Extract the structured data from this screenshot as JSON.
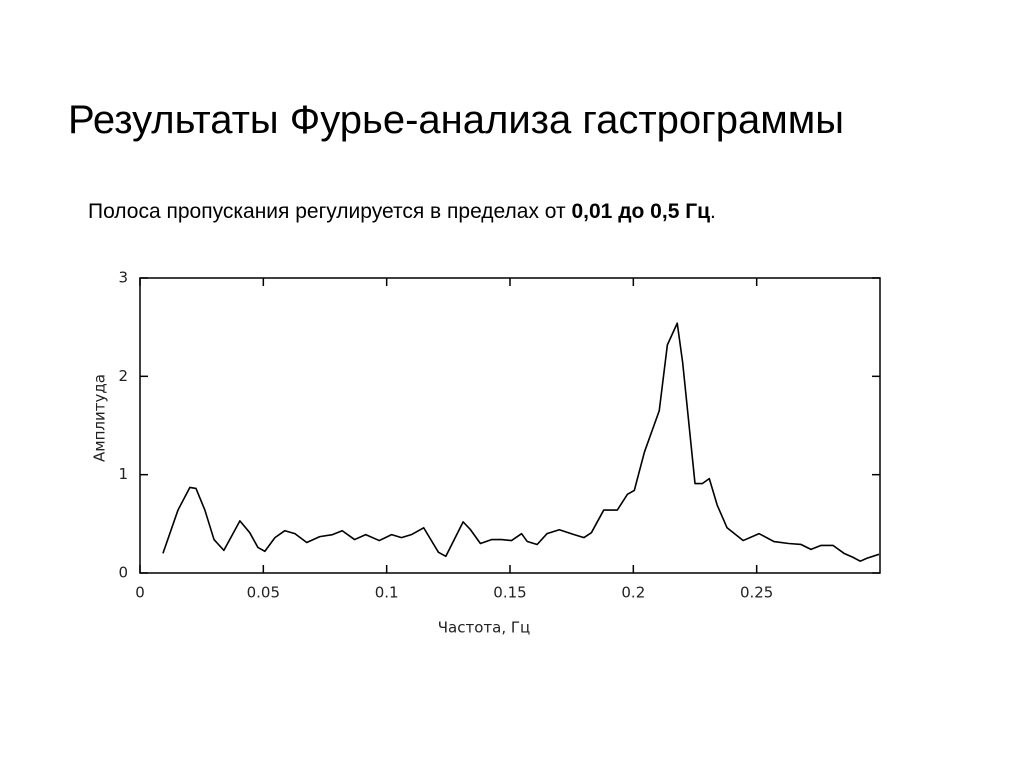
{
  "chart_data": {
    "type": "line",
    "title": "Результаты Фурье-анализа гастрограммы",
    "subtitle": "Полоса пропускания регулируется в пределах от ",
    "subtitle_bold": "0,01 до 0,5 Гц",
    "subtitle_end": ".",
    "xlabel": "Частота, Гц",
    "ylabel": "Амплитуда",
    "xlim": [
      0,
      0.3
    ],
    "xticks": [
      0,
      0.05,
      0.1,
      0.15,
      0.2,
      0.25
    ],
    "ylim": [
      0,
      3
    ],
    "yticks": [
      0,
      1,
      2,
      3
    ],
    "color": "#000000",
    "x": [
      0.0093,
      0.0154,
      0.0202,
      0.0227,
      0.0263,
      0.03,
      0.034,
      0.0405,
      0.0445,
      0.0478,
      0.0506,
      0.0547,
      0.0587,
      0.0628,
      0.0676,
      0.0729,
      0.078,
      0.082,
      0.087,
      0.0915,
      0.097,
      0.102,
      0.106,
      0.11,
      0.115,
      0.121,
      0.124,
      0.131,
      0.134,
      0.138,
      0.1425,
      0.1466,
      0.1506,
      0.1547,
      0.157,
      0.161,
      0.165,
      0.17,
      0.176,
      0.18,
      0.183,
      0.188,
      0.1935,
      0.1976,
      0.2004,
      0.2045,
      0.2105,
      0.2138,
      0.2178,
      0.22,
      0.225,
      0.228,
      0.2308,
      0.234,
      0.238,
      0.2445,
      0.251,
      0.257,
      0.263,
      0.268,
      0.272,
      0.276,
      0.281,
      0.2854,
      0.289,
      0.292,
      0.2947,
      0.2996
    ],
    "values": [
      0.2,
      0.64,
      0.87,
      0.86,
      0.64,
      0.34,
      0.23,
      0.53,
      0.41,
      0.26,
      0.22,
      0.36,
      0.43,
      0.4,
      0.31,
      0.37,
      0.39,
      0.43,
      0.34,
      0.39,
      0.33,
      0.39,
      0.36,
      0.39,
      0.46,
      0.21,
      0.17,
      0.52,
      0.44,
      0.3,
      0.34,
      0.34,
      0.33,
      0.4,
      0.32,
      0.29,
      0.4,
      0.44,
      0.39,
      0.36,
      0.41,
      0.64,
      0.64,
      0.8,
      0.84,
      1.23,
      1.65,
      2.32,
      2.54,
      2.14,
      0.91,
      0.91,
      0.96,
      0.69,
      0.46,
      0.33,
      0.4,
      0.32,
      0.3,
      0.29,
      0.24,
      0.28,
      0.28,
      0.2,
      0.16,
      0.12,
      0.15,
      0.19
    ]
  }
}
